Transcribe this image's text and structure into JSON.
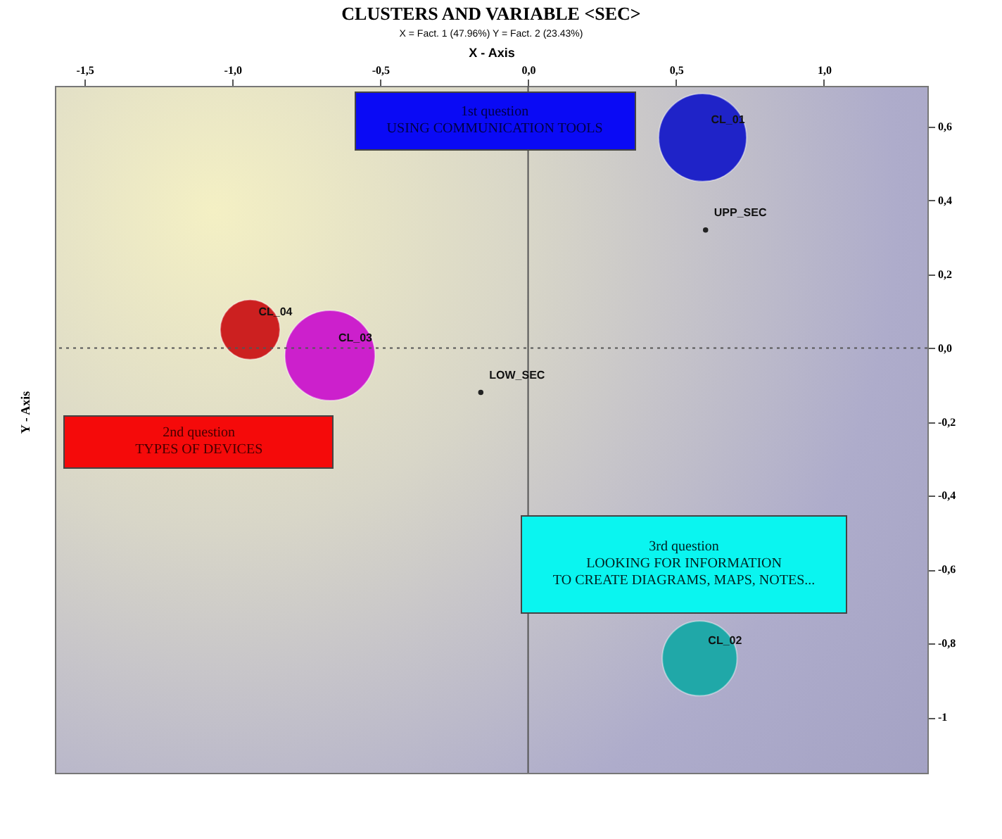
{
  "chart_data": {
    "type": "scatter",
    "title": "CLUSTERS AND VARIABLE <SEC>",
    "subtitle": "X = Fact. 1 (47.96%)  Y = Fact. 2 (23.43%)",
    "xlabel": "X - Axis",
    "ylabel": "Y - Axis",
    "series": [
      {
        "type": "bubble",
        "x": [
          0.59,
          -0.94,
          -0.67,
          0.58
        ],
        "values": [
          0.57,
          0.05,
          -0.02,
          -0.84
        ],
        "sizes": [
          0.95,
          0.44,
          1,
          0.69
        ],
        "colors": [
          "#1f23c8",
          "#cc2020",
          "#cc20cc",
          "#20a8a8"
        ]
      },
      {
        "type": "scatter",
        "x": [
          0.6,
          -0.16
        ],
        "values": [
          0.32,
          -0.12
        ],
        "color": "#222222",
        "marker": "circle"
      }
    ],
    "xlim": [
      -1.6,
      1.35
    ],
    "xticks": [
      {
        "value": -1.5,
        "label": "-1,5"
      },
      {
        "value": -1,
        "label": "-1,0"
      },
      {
        "value": -0.5,
        "label": "-0,5"
      },
      {
        "value": 0,
        "label": "0,0"
      },
      {
        "value": 0.5,
        "label": "0,5"
      },
      {
        "value": 1,
        "label": "1,0"
      }
    ],
    "ylim": [
      -1.15,
      0.71
    ],
    "yticks": [
      {
        "value": 0.6,
        "label": "0,6"
      },
      {
        "value": 0.4,
        "label": "0,4"
      },
      {
        "value": 0.2,
        "label": "0,2"
      },
      {
        "value": 0,
        "label": "0,0"
      },
      {
        "value": -0.2,
        "label": "-0,2"
      },
      {
        "value": -0.4,
        "label": "-0,4"
      },
      {
        "value": -0.6,
        "label": "-0,6"
      },
      {
        "value": -0.8,
        "label": "-0,8"
      },
      {
        "value": -1,
        "label": "-1"
      }
    ],
    "ref_lines": [
      {
        "axis": "x",
        "value": 0,
        "line_style": "solid"
      },
      {
        "axis": "y",
        "value": 0,
        "line_style": "dotted"
      }
    ],
    "annotations": [
      {
        "text": "CL_01",
        "x": 0.59,
        "y": 0.57
      },
      {
        "text": "CL_04",
        "x": -0.94,
        "y": 0.05
      },
      {
        "text": "CL_03",
        "x": -0.67,
        "y": -0.02
      },
      {
        "text": "CL_02",
        "x": 0.58,
        "y": -0.84
      },
      {
        "text": "UPP_SEC",
        "x": 0.6,
        "y": 0.32
      },
      {
        "text": "LOW_SEC",
        "x": -0.16,
        "y": -0.12
      },
      "1st question\nUSING COMMUNICATION TOOLS",
      "2nd question\nTYPES OF DEVICES",
      "3rd question\nLOOKING FOR INFORMATION\nTO CREATE DIAGRAMS, MAPS, NOTES..."
    ],
    "grid": false
  }
}
